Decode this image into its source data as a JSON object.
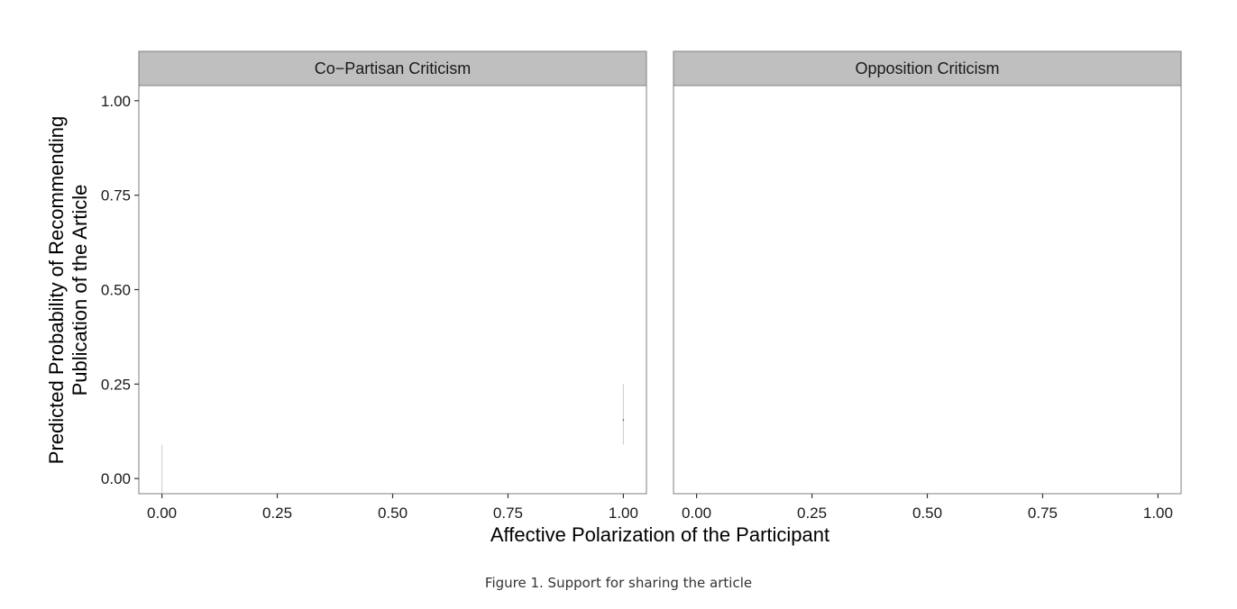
{
  "caption": "Figure 1. Support for sharing the article",
  "colors": {
    "strip_fill": "#bfbfbf",
    "panel_border": "#7f7f7f",
    "tick": "#333333",
    "interval": "#cccccc"
  },
  "chart_data": {
    "type": "line",
    "title": "",
    "xlabel": "Affective Polarization of the Participant",
    "ylabel_lines": [
      "Predicted Probability of Recommending",
      "Publication of the Article"
    ],
    "xlim": [
      -0.05,
      1.05
    ],
    "ylim": [
      -0.04,
      1.04
    ],
    "x_ticks": [
      0,
      0.25,
      0.5,
      0.75,
      1
    ],
    "x_tick_labels": [
      "0.00",
      "0.25",
      "0.50",
      "0.75",
      "1.00"
    ],
    "y_ticks": [
      0,
      0.25,
      0.5,
      0.75,
      1
    ],
    "y_tick_labels": [
      "0.00",
      "0.25",
      "0.50",
      "0.75",
      "1.00"
    ],
    "grid": false,
    "legend": "none",
    "facets": [
      {
        "name": "Co−Partisan Criticism",
        "intervals": [
          {
            "x": 0.0,
            "lower": -0.04,
            "upper": 0.09,
            "estimate": null
          },
          {
            "x": 1.0,
            "lower": 0.09,
            "upper": 0.25,
            "estimate": 0.155
          }
        ]
      },
      {
        "name": "Opposition Criticism",
        "intervals": []
      }
    ]
  }
}
